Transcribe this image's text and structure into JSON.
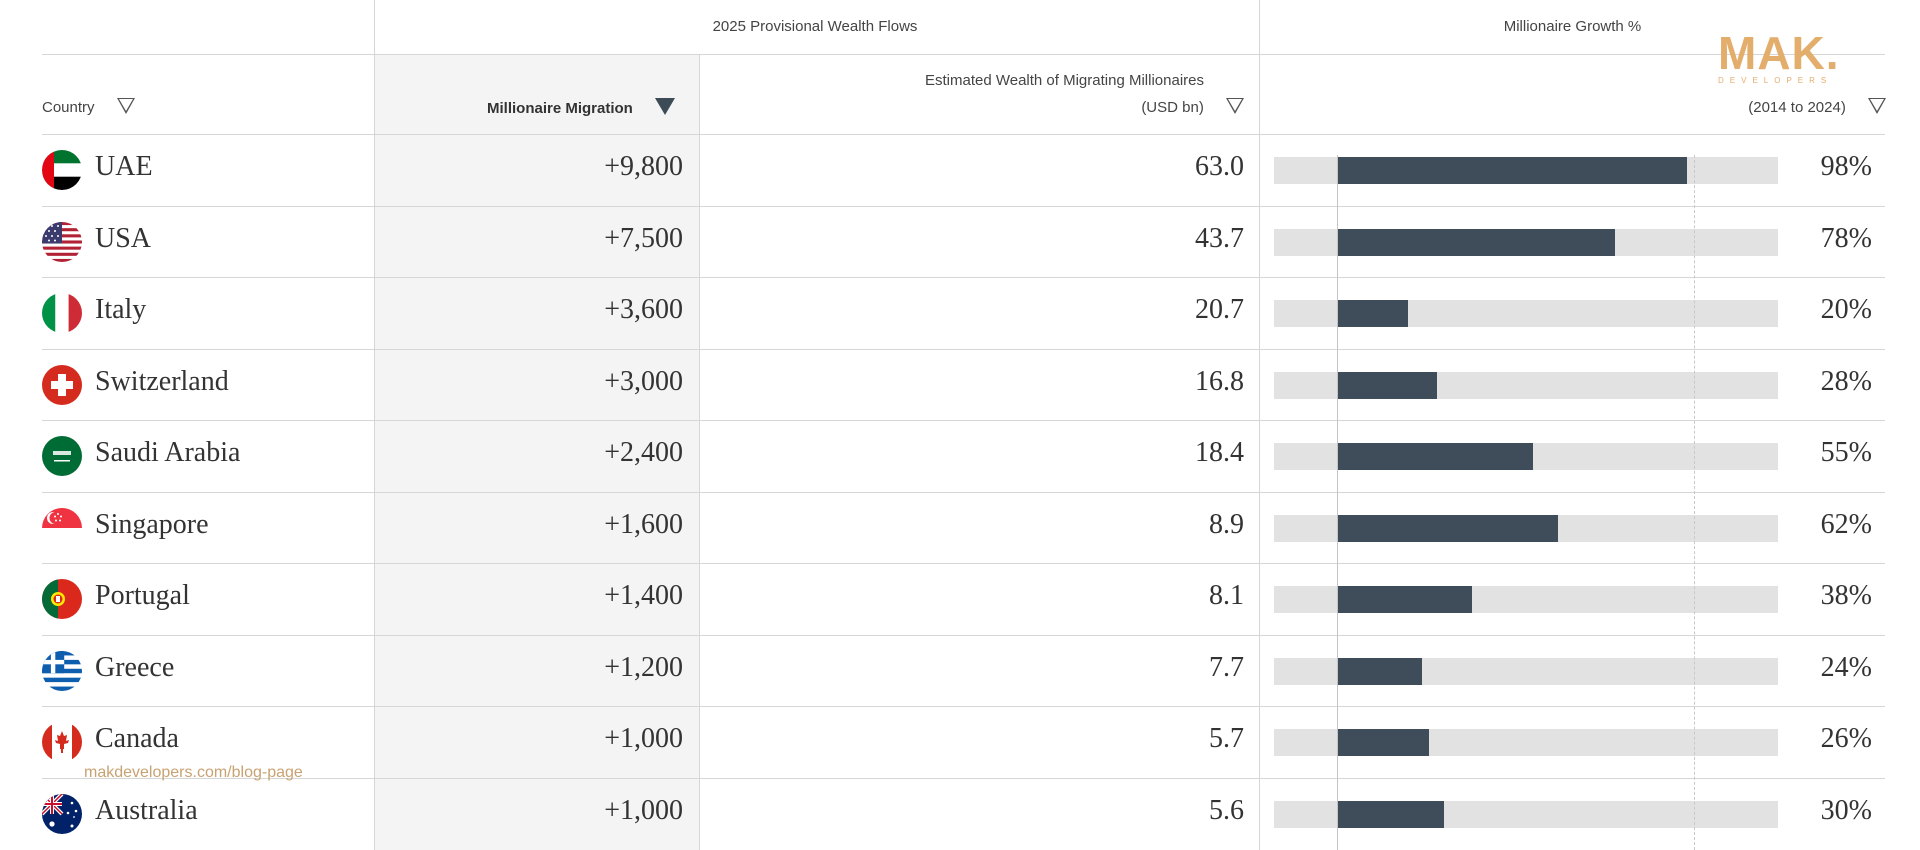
{
  "header": {
    "group_flows": "2025 Provisional Wealth Flows",
    "group_growth": "Millionaire Growth %",
    "col_country": "Country",
    "col_migration": "Millionaire Migration",
    "col_wealth_line1": "Estimated Wealth of Migrating Millionaires",
    "col_wealth_line2": "(USD bn)",
    "col_growth": "(2014 to 2024)"
  },
  "logo": {
    "main": "MAK.",
    "sub": "DEVELOPERS"
  },
  "watermark": "makdevelopers.com/blog-page",
  "colors": {
    "bar": "#3e4d59",
    "track": "#e2e2e2",
    "logo": "#e3ad6c",
    "shade": "#f4f4f4"
  },
  "chart_data": {
    "type": "table",
    "columns": [
      "Country",
      "Millionaire Migration",
      "Estimated Wealth of Migrating Millionaires (USD bn)",
      "Millionaire Growth % (2014 to 2024)"
    ],
    "rows": [
      {
        "country": "UAE",
        "flag": "uae-flag-icon",
        "migration": "+9,800",
        "wealth": "63.0",
        "growth": 98,
        "growth_label": "98%"
      },
      {
        "country": "USA",
        "flag": "usa-flag-icon",
        "migration": "+7,500",
        "wealth": "43.7",
        "growth": 78,
        "growth_label": "78%"
      },
      {
        "country": "Italy",
        "flag": "italy-flag-icon",
        "migration": "+3,600",
        "wealth": "20.7",
        "growth": 20,
        "growth_label": "20%"
      },
      {
        "country": "Switzerland",
        "flag": "switzerland-flag-icon",
        "migration": "+3,000",
        "wealth": "16.8",
        "growth": 28,
        "growth_label": "28%"
      },
      {
        "country": "Saudi Arabia",
        "flag": "saudi-arabia-flag-icon",
        "migration": "+2,400",
        "wealth": "18.4",
        "growth": 55,
        "growth_label": "55%"
      },
      {
        "country": "Singapore",
        "flag": "singapore-flag-icon",
        "migration": "+1,600",
        "wealth": "8.9",
        "growth": 62,
        "growth_label": "62%"
      },
      {
        "country": "Portugal",
        "flag": "portugal-flag-icon",
        "migration": "+1,400",
        "wealth": "8.1",
        "growth": 38,
        "growth_label": "38%"
      },
      {
        "country": "Greece",
        "flag": "greece-flag-icon",
        "migration": "+1,200",
        "wealth": "7.7",
        "growth": 24,
        "growth_label": "24%"
      },
      {
        "country": "Canada",
        "flag": "canada-flag-icon",
        "migration": "+1,000",
        "wealth": "5.7",
        "growth": 26,
        "growth_label": "26%"
      },
      {
        "country": "Australia",
        "flag": "australia-flag-icon",
        "migration": "+1,000",
        "wealth": "5.6",
        "growth": 30,
        "growth_label": "30%"
      }
    ],
    "growth_axis": {
      "min": -17.5,
      "max": 123.6,
      "reference_line": 100
    }
  }
}
